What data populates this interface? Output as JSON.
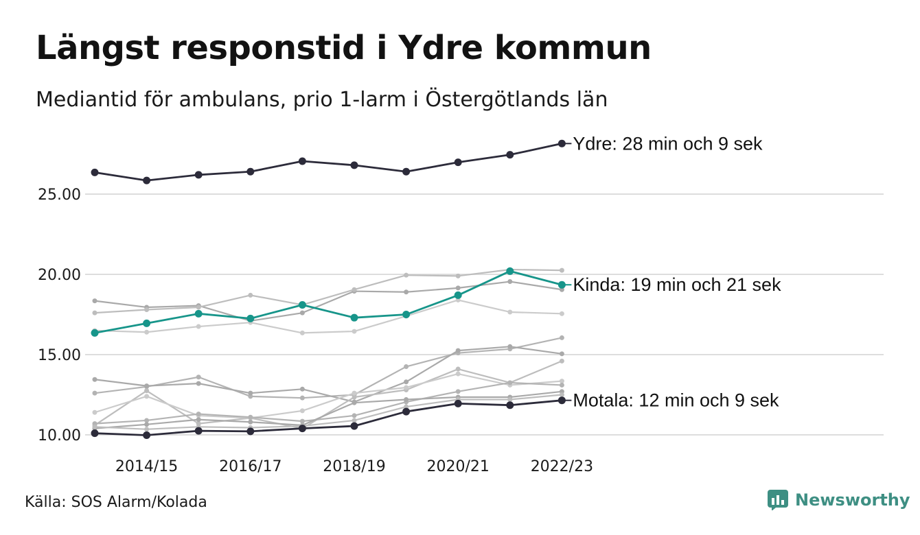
{
  "title": "Längst responstid i Ydre kommun",
  "subtitle": "Mediantid för ambulans, prio 1-larm i Östergötlands län",
  "source": "Källa: SOS Alarm/Kolada",
  "brand": "Newsworthy",
  "colors": {
    "highlight_dark": "#2c2b3a",
    "highlight_teal": "#17958a",
    "context_grey": [
      "#a9a9a9",
      "#bdbdbd",
      "#cbcbcb",
      "#b3b3b3"
    ],
    "grid": "#dddddd",
    "brand": "#3e8f83"
  },
  "chart_data": {
    "type": "line",
    "x": [
      "2013/14",
      "2014/15",
      "2015/16",
      "2016/17",
      "2017/18",
      "2018/19",
      "2019/20",
      "2020/21",
      "2021/22",
      "2022/23"
    ],
    "x_tick_labels": [
      "2014/15",
      "2016/17",
      "2018/19",
      "2020/21",
      "2022/23"
    ],
    "y_tick_labels": [
      "10.00",
      "15.00",
      "20.00",
      "25.00"
    ],
    "ylim": [
      10,
      28.2
    ],
    "grid": true,
    "series": [
      {
        "name": "Ydre",
        "highlight": "dark",
        "label": "Ydre: 28 min och 9 sek",
        "values": [
          26.35,
          25.85,
          26.2,
          26.4,
          27.05,
          26.8,
          26.4,
          26.98,
          27.45,
          28.15
        ]
      },
      {
        "name": "Kinda",
        "highlight": "teal",
        "label": "Kinda: 19 min och 21 sek",
        "values": [
          16.35,
          16.95,
          17.55,
          17.25,
          18.1,
          17.3,
          17.5,
          18.7,
          20.2,
          19.35
        ]
      },
      {
        "name": "Motala",
        "highlight": "dark",
        "label": "Motala: 12 min och 9 sek",
        "values": [
          10.1,
          9.98,
          10.25,
          10.22,
          10.4,
          10.55,
          11.45,
          11.95,
          11.85,
          12.15
        ]
      },
      {
        "values": [
          18.35,
          17.95,
          18.05,
          17.1,
          17.6,
          18.95,
          18.9,
          19.15,
          19.55,
          19.05
        ]
      },
      {
        "values": [
          17.6,
          17.8,
          17.95,
          18.7,
          18.1,
          19.05,
          19.95,
          19.9,
          20.3,
          20.25
        ]
      },
      {
        "values": [
          16.5,
          16.4,
          16.75,
          17.0,
          16.35,
          16.45,
          17.4,
          18.4,
          17.65,
          17.55
        ]
      },
      {
        "values": [
          12.6,
          13.0,
          13.6,
          12.4,
          12.3,
          12.5,
          14.25,
          15.1,
          15.35,
          16.05
        ]
      },
      {
        "values": [
          13.45,
          13.05,
          13.2,
          12.6,
          12.85,
          12.05,
          13.3,
          15.25,
          15.5,
          15.05
        ]
      },
      {
        "values": [
          10.6,
          12.75,
          10.7,
          11.05,
          10.4,
          12.35,
          12.8,
          14.1,
          13.25,
          14.6
        ]
      },
      {
        "values": [
          11.4,
          12.4,
          11.2,
          11.05,
          11.5,
          12.6,
          12.95,
          13.8,
          13.1,
          13.35
        ]
      },
      {
        "values": [
          10.7,
          10.9,
          11.3,
          11.1,
          10.85,
          11.2,
          12.05,
          12.7,
          13.25,
          13.1
        ]
      },
      {
        "values": [
          10.4,
          10.65,
          10.95,
          10.8,
          10.6,
          12.0,
          12.2,
          12.35,
          12.35,
          12.7
        ]
      },
      {
        "values": [
          10.5,
          10.35,
          10.5,
          10.45,
          10.55,
          10.9,
          11.75,
          12.2,
          12.2,
          12.5
        ]
      }
    ]
  }
}
